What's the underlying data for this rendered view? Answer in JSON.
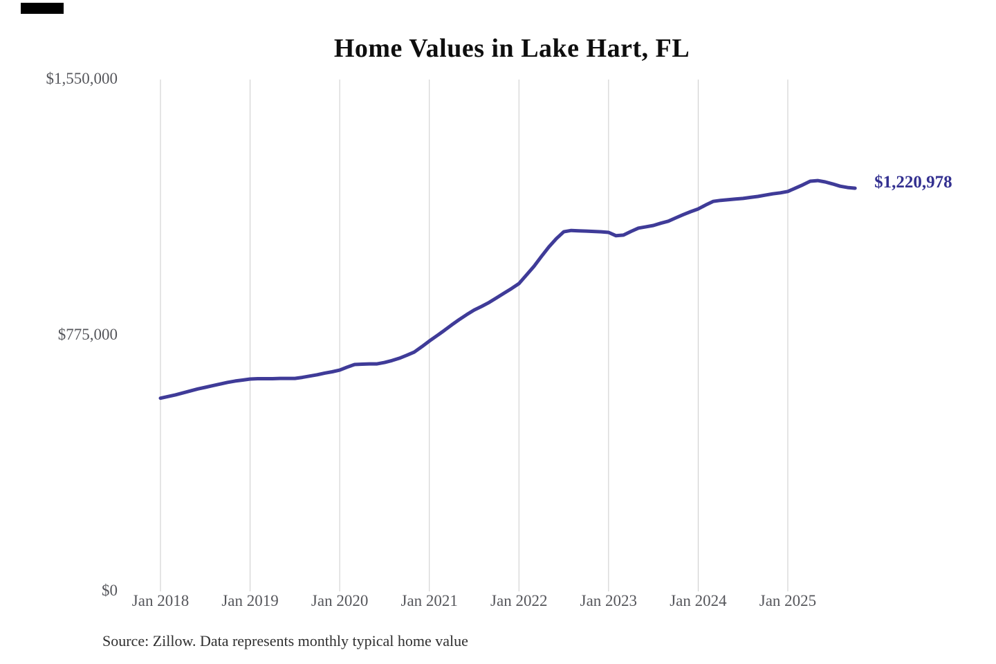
{
  "title": "Home Values in Lake Hart, FL",
  "end_label": "$1,220,978",
  "source": "Source: Zillow. Data represents monthly typical home value",
  "colors": {
    "line": "#3f3b98",
    "end_label_text": "#333090",
    "grid": "#cbcbcb",
    "axis_text": "#55565b",
    "title_text": "#0e0e0e",
    "source_text": "#2f2f2f",
    "background": "#ffffff"
  },
  "chart_data": {
    "type": "line",
    "title": "Home Values in Lake Hart, FL",
    "xlabel": "",
    "ylabel": "",
    "ylim": [
      0,
      1550000
    ],
    "y_ticks": [
      1550000,
      775000,
      0
    ],
    "y_tick_labels": [
      "$1,550,000",
      "$775,000",
      "$0"
    ],
    "x_tick_labels": [
      "Jan 2018",
      "Jan 2019",
      "Jan 2020",
      "Jan 2021",
      "Jan 2022",
      "Jan 2023",
      "Jan 2024",
      "Jan 2025"
    ],
    "grid": "vertical-only",
    "legend": "none",
    "frequency": "monthly",
    "x_start": "Jan 2018",
    "x_end": "Oct 2025",
    "end_value": 1220978,
    "end_value_label": "$1,220,978",
    "values": [
      585000,
      590000,
      595000,
      601000,
      607000,
      613000,
      618000,
      623000,
      628000,
      633000,
      637000,
      640000,
      643000,
      644000,
      644000,
      644000,
      645000,
      645000,
      645000,
      648000,
      652000,
      656000,
      661000,
      665000,
      670000,
      679000,
      687000,
      688000,
      689000,
      689000,
      693000,
      699000,
      706000,
      715000,
      725000,
      741000,
      758000,
      774000,
      790000,
      807000,
      823000,
      838000,
      852000,
      863000,
      875000,
      889000,
      903000,
      917000,
      932000,
      958000,
      984000,
      1014000,
      1043000,
      1068000,
      1089000,
      1093000,
      1092000,
      1091000,
      1090000,
      1089000,
      1087000,
      1077000,
      1079000,
      1090000,
      1100000,
      1104000,
      1108000,
      1115000,
      1121000,
      1131000,
      1141000,
      1150000,
      1158000,
      1170000,
      1181000,
      1184000,
      1186000,
      1188000,
      1190000,
      1193000,
      1196000,
      1200000,
      1204000,
      1207000,
      1211000,
      1221000,
      1231000,
      1242000,
      1244000,
      1240000,
      1234000,
      1227000,
      1223000,
      1220978
    ]
  }
}
